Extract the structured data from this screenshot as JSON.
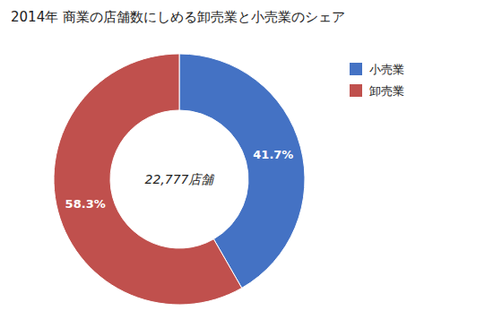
{
  "chart_data": {
    "type": "pie",
    "title": "2014年 商業の店舗数にしめる卸売業と小売業のシェア",
    "annotations": [
      "22,777店舗"
    ],
    "categories": [
      "小売業",
      "卸売業"
    ],
    "values": [
      41.7,
      58.3
    ],
    "value_labels": [
      "41.7%",
      "58.3%"
    ],
    "colors": [
      "#4472C4",
      "#C0504D"
    ],
    "data_labels": true,
    "legend": "upper right"
  }
}
